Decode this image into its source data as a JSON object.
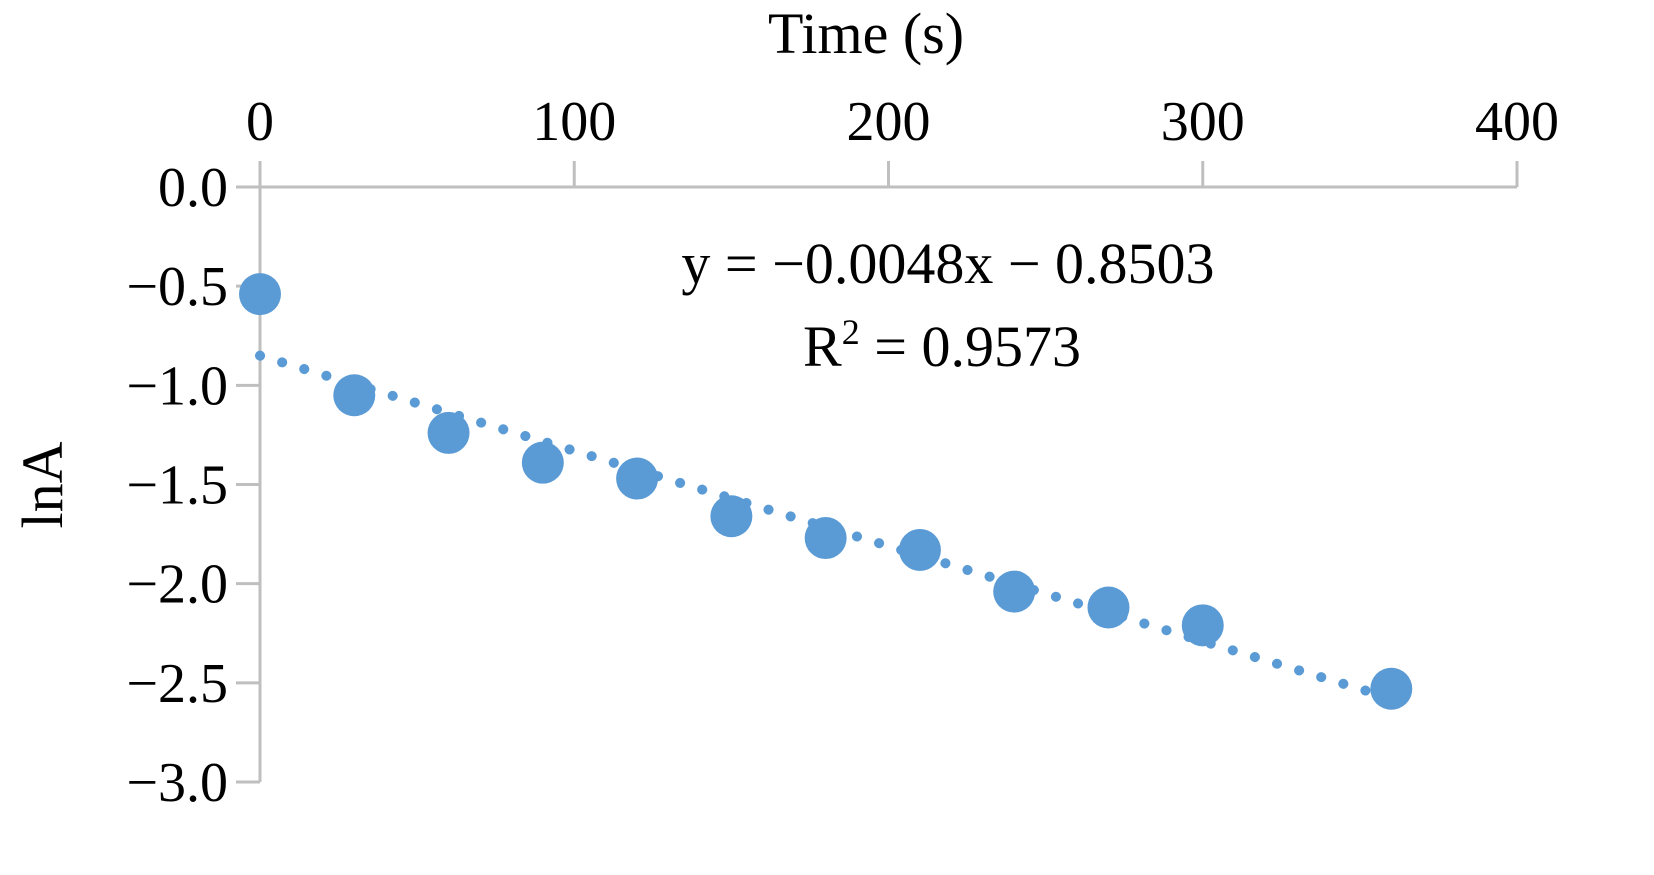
{
  "chart_data": {
    "type": "scatter",
    "xlabel": "Time (s)",
    "ylabel": "lnA",
    "xlim": [
      0,
      400
    ],
    "ylim": [
      -3.0,
      0.0
    ],
    "x_ticks": [
      "0",
      "100",
      "200",
      "300",
      "400"
    ],
    "x_tick_values": [
      0,
      100,
      200,
      300,
      400
    ],
    "y_ticks": [
      "0.0",
      "−0.5",
      "−1.0",
      "−1.5",
      "−2.0",
      "−2.5",
      "−3.0"
    ],
    "y_tick_values": [
      0.0,
      -0.5,
      -1.0,
      -1.5,
      -2.0,
      -2.5,
      -3.0
    ],
    "x_axis_position": "top",
    "grid": false,
    "marker_color": "#5b9bd5",
    "series": [
      {
        "x": [
          0,
          30,
          60,
          90,
          120,
          150,
          180,
          210,
          240,
          270,
          300,
          360
        ],
        "y": [
          -0.54,
          -1.05,
          -1.24,
          -1.39,
          -1.47,
          -1.66,
          -1.77,
          -1.83,
          -2.04,
          -2.12,
          -2.21,
          -2.53
        ]
      }
    ],
    "trendline": {
      "style": "dotted",
      "slope": -0.0048,
      "intercept": -0.8503,
      "x_range": [
        0,
        360
      ],
      "equation": "y = −0.0048x − 0.8503",
      "r2_prefix": "R",
      "r2_sup": "2",
      "r2_value": " = 0.9573"
    }
  }
}
